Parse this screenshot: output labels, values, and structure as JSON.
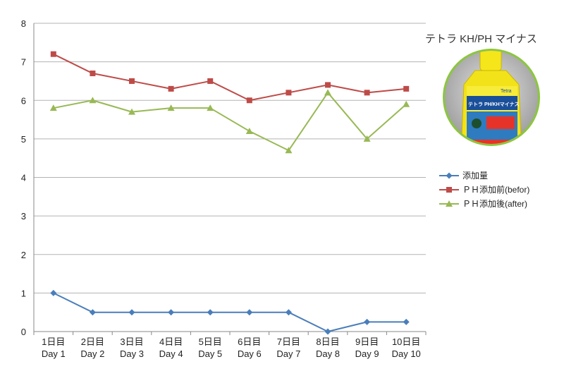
{
  "product": {
    "title": "テトラ KH/PH マイナス",
    "bottle_brand": "Tetra",
    "bottle_label": "テトラ PH/KHマイナス"
  },
  "colors": {
    "dose": "#4a7ebb",
    "before": "#be4b48",
    "after": "#98b954",
    "grid": "#b3b3b3",
    "bottle_ring": "#8cc63f",
    "bottle_body": "#f2e21a",
    "bottle_label": "#e63329"
  },
  "chart_data": {
    "type": "line",
    "categories": [
      [
        "1日目",
        "Day 1"
      ],
      [
        "2日目",
        "Day 2"
      ],
      [
        "3日目",
        "Day 3"
      ],
      [
        "4日目",
        "Day 4"
      ],
      [
        "5日目",
        "Day 5"
      ],
      [
        "6日目",
        "Day 6"
      ],
      [
        "7日目",
        "Day 7"
      ],
      [
        "8日目",
        "Day 8"
      ],
      [
        "9日目",
        "Day 9"
      ],
      [
        "10日目",
        "Day 10"
      ]
    ],
    "series": [
      {
        "name": "添加量",
        "marker": "diamond",
        "values": [
          1,
          0.5,
          0.5,
          0.5,
          0.5,
          0.5,
          0.5,
          0,
          0.25,
          0.25
        ]
      },
      {
        "name": "ＰＨ添加前(befor)",
        "marker": "square",
        "values": [
          7.2,
          6.7,
          6.5,
          6.3,
          6.5,
          6.0,
          6.2,
          6.4,
          6.2,
          6.3
        ]
      },
      {
        "name": "ＰＨ添加後(after)",
        "marker": "triangle",
        "values": [
          5.8,
          6.0,
          5.7,
          5.8,
          5.8,
          5.2,
          4.7,
          6.2,
          5.0,
          5.9
        ]
      }
    ],
    "ylim": [
      0,
      8
    ],
    "yticks": [
      0,
      1,
      2,
      3,
      4,
      5,
      6,
      7,
      8
    ],
    "grid": true,
    "legend": "right"
  }
}
